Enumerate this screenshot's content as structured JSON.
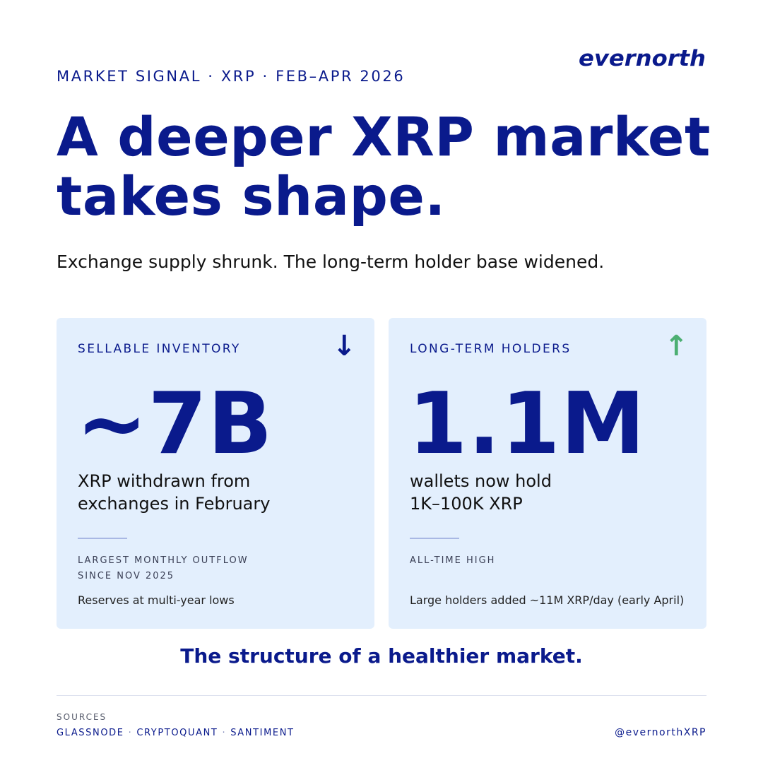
{
  "brand": {
    "logo_text": "evernorth",
    "color": "#0a1a8c"
  },
  "header": {
    "kicker": "MARKET SIGNAL · XRP · FEB–APR 2026",
    "headline_line1": "A deeper XRP market",
    "headline_line2": "takes shape.",
    "subtitle": "Exchange supply shrunk. The long-term holder base widened."
  },
  "cards": [
    {
      "label": "SELLABLE INVENTORY",
      "arrow": "↓",
      "arrow_icon": "arrow-down-icon",
      "arrow_color": "#0a1a8c",
      "value": "~7B",
      "desc_line1": "XRP withdrawn from",
      "desc_line2": "exchanges in February",
      "note_line1": "LARGEST MONTHLY OUTFLOW",
      "note_line2": "SINCE NOV 2025",
      "detail": "Reserves at multi-year lows"
    },
    {
      "label": "LONG-TERM HOLDERS",
      "arrow": "↑",
      "arrow_icon": "arrow-up-icon",
      "arrow_color": "#4caf72",
      "value": "1.1M",
      "desc_line1": "wallets now hold",
      "desc_line2": "1K–100K XRP",
      "note_line1": "ALL-TIME HIGH",
      "detail": "Large holders added ~11M XRP/day (early April)"
    }
  ],
  "tagline": "The structure of a healthier market.",
  "footer": {
    "sources_label": "SOURCES",
    "sources": [
      "GLASSNODE",
      "CRYPTOQUANT",
      "SANTIMENT"
    ],
    "separator": "·",
    "handle": "@evernorthXRP"
  },
  "colors": {
    "navy": "#0a1a8c",
    "card_bg": "#e3effd",
    "up_green": "#4caf72"
  }
}
